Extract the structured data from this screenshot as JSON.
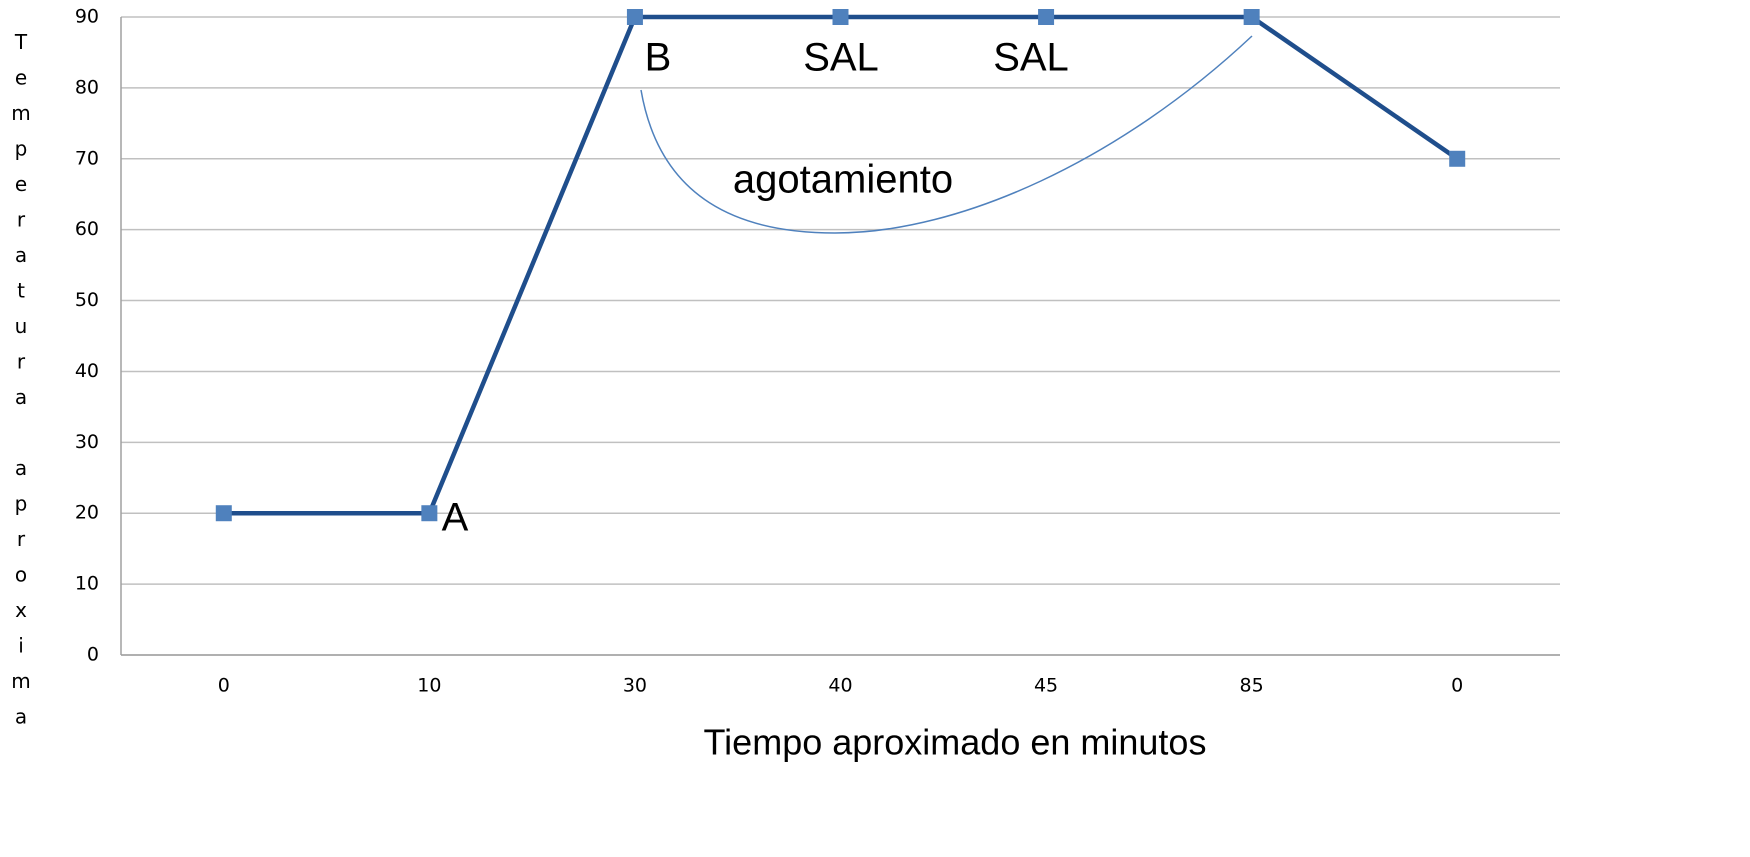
{
  "chart_data": {
    "type": "line",
    "x_label": "Tiempo aproximado en minutos",
    "y_label": "Temperatura aproxima",
    "categories": [
      "0",
      "10",
      "30",
      "40",
      "45",
      "85",
      "0"
    ],
    "values": [
      20,
      20,
      90,
      90,
      90,
      90,
      70
    ],
    "color": "#1f4e8c",
    "marker_color": "#4f81bd",
    "ylim": [
      0,
      90
    ],
    "yticks": [
      0,
      10,
      20,
      30,
      40,
      50,
      60,
      70,
      80,
      90
    ],
    "grid": true,
    "annotations": [
      "A",
      "B",
      "SAL",
      "SAL",
      "agotamiento"
    ]
  }
}
